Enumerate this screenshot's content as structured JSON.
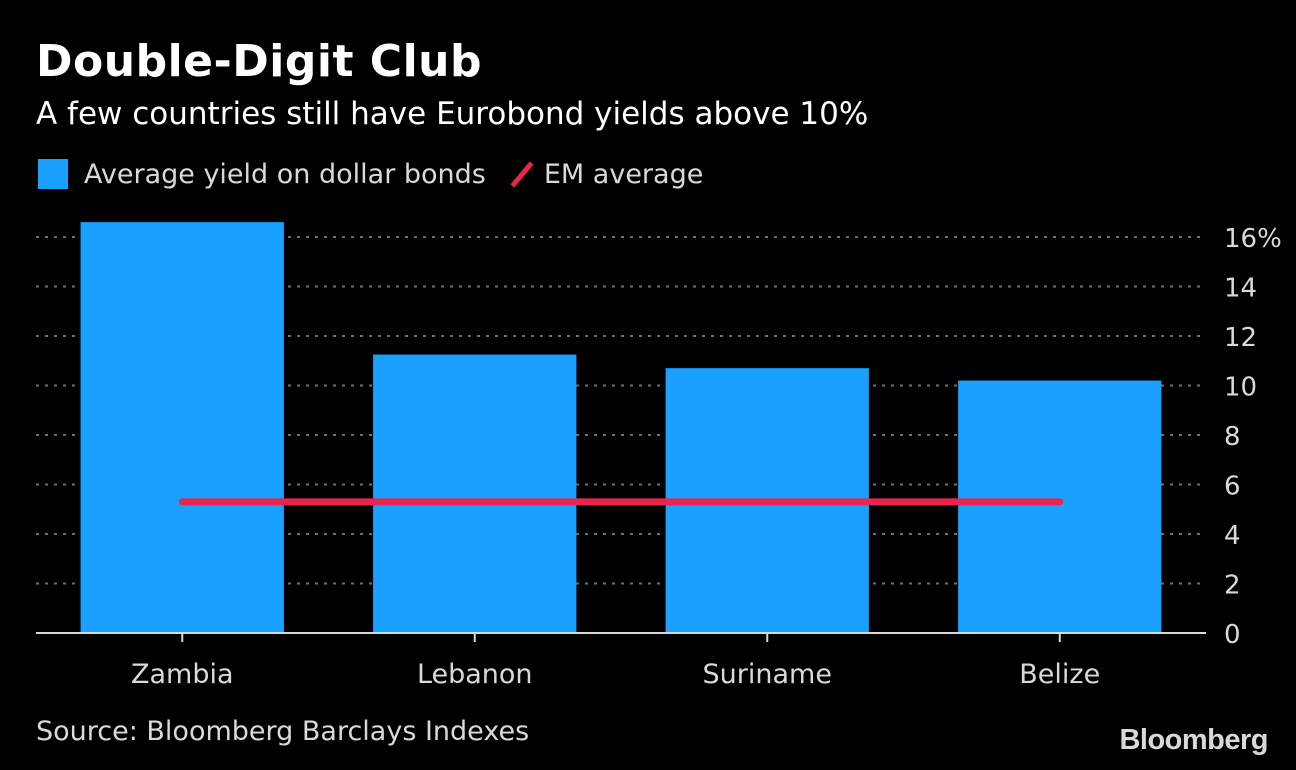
{
  "title": "Double-Digit Club",
  "subtitle": "A few countries still have Eurobond yields above 10%",
  "legend": {
    "bars_label": "Average yield on dollar bonds",
    "line_label": "EM average"
  },
  "source": "Source: Bloomberg Barclays Indexes",
  "logo": "Bloomberg",
  "colors": {
    "bar": "#1aa1ff",
    "line": "#e8254f",
    "grid": "#6e6e6e",
    "axis_text": "#d9d9d9"
  },
  "chart_data": {
    "type": "bar",
    "title": "Double-Digit Club",
    "categories": [
      "Zambia",
      "Lebanon",
      "Suriname",
      "Belize"
    ],
    "series": [
      {
        "name": "Average yield on dollar bonds",
        "type": "bar",
        "values": [
          16.6,
          11.25,
          10.7,
          10.2
        ]
      },
      {
        "name": "EM average",
        "type": "line",
        "values": [
          5.3,
          5.3,
          5.3,
          5.3
        ]
      }
    ],
    "ylim": [
      0,
      16
    ],
    "yticks": [
      0,
      2,
      4,
      6,
      8,
      10,
      12,
      14,
      16
    ],
    "ytick_labels": [
      "0",
      "2",
      "4",
      "6",
      "8",
      "10",
      "12",
      "14",
      "16%"
    ],
    "xlabel": "",
    "ylabel": "",
    "grid": true,
    "y_axis_side": "right"
  }
}
